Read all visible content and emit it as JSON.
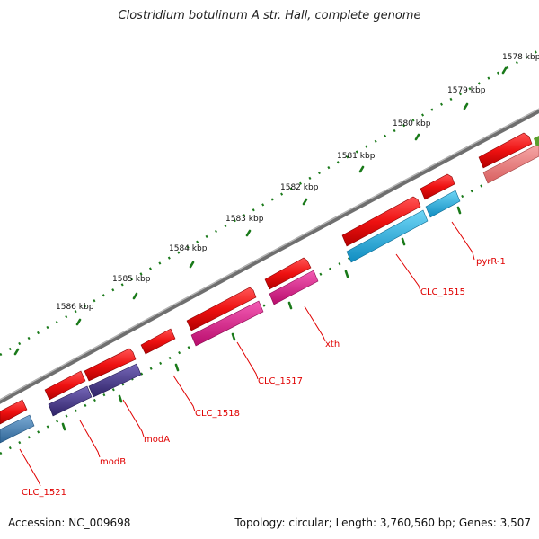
{
  "title": "Clostridium botulinum A str. Hall, complete genome",
  "accession_label": "Accession: NC_009698",
  "summary_label": "Topology: circular; Length: 3,760,560 bp; Genes: 3,507",
  "colors": {
    "backbone": "#7f7f7f",
    "tick_dots": "#1a7a1a",
    "label_line": "#e00000",
    "label_text": "#e00000",
    "gene_strand": "#ee1111",
    "cds_blue": "#18b4e8",
    "cds_pink": "#e6158d",
    "cds_purple": "#4b3b8f",
    "cds_steel": "#4a86b8",
    "cds_salmon": "#f08080"
  },
  "ticks": [
    {
      "label": "1578 kbp"
    },
    {
      "label": "1579 kbp"
    },
    {
      "label": "1580 kbp"
    },
    {
      "label": "1581 kbp"
    },
    {
      "label": "1582 kbp"
    },
    {
      "label": "1583 kbp"
    },
    {
      "label": "1584 kbp"
    },
    {
      "label": "1585 kbp"
    },
    {
      "label": "1586 kbp"
    }
  ],
  "genes": [
    {
      "label": "pyrR-1"
    },
    {
      "label": "CLC_1515"
    },
    {
      "label": "xth"
    },
    {
      "label": "CLC_1517"
    },
    {
      "label": "CLC_1518"
    },
    {
      "label": "modA"
    },
    {
      "label": "modB"
    },
    {
      "label": "CLC_1521"
    }
  ]
}
